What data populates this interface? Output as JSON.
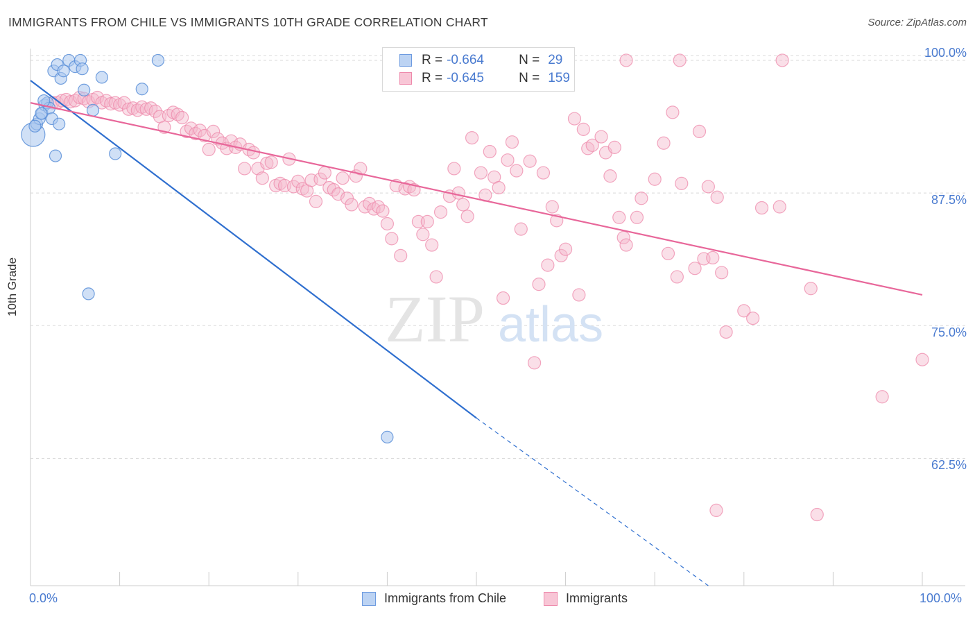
{
  "title": "IMMIGRANTS FROM CHILE VS IMMIGRANTS 10TH GRADE CORRELATION CHART",
  "source": "Source: ZipAtlas.com",
  "watermark": {
    "zip": "ZIP",
    "atlas": "atlas"
  },
  "colors": {
    "blue_fill": "#a9c6ee",
    "blue_stroke": "#5b8fd8",
    "blue_line": "#2f6fcf",
    "pink_fill": "#f5b8cc",
    "pink_stroke": "#ee89ab",
    "pink_line": "#e8679a",
    "tick_text": "#4a7bd0",
    "grid": "#d8d8d8"
  },
  "legend": {
    "rows": [
      {
        "r_label": "R =",
        "r_value": "-0.664",
        "n_label": "N =",
        "n_value": "29"
      },
      {
        "r_label": "R =",
        "r_value": "-0.645",
        "n_label": "N =",
        "n_value": "159"
      }
    ]
  },
  "bottom_legend": {
    "series1": "Immigrants from Chile",
    "series2": "Immigrants"
  },
  "chart_data": {
    "type": "scatter",
    "title": "IMMIGRANTS FROM CHILE VS IMMIGRANTS 10TH GRADE CORRELATION CHART",
    "xlabel": "",
    "ylabel": "10th Grade",
    "xlim": [
      0,
      100
    ],
    "ylim": [
      50.5,
      101.5
    ],
    "x_tick_labels": [
      "0.0%",
      "100.0%"
    ],
    "y_ticks": [
      62.5,
      75.0,
      87.5,
      100.0
    ],
    "y_tick_labels": [
      "62.5%",
      "75.0%",
      "87.5%",
      "100.0%"
    ],
    "grid": "horizontal dashed",
    "legend_position": "top-center",
    "series": [
      {
        "name": "Immigrants from Chile",
        "color": "#a9c6ee",
        "regression": {
          "x": [
            0,
            50
          ],
          "y": [
            98.1,
            66.3
          ],
          "dashed_to": [
            76,
            50.5
          ]
        },
        "points": [
          [
            0.3,
            93.0
          ],
          [
            0.7,
            94.0
          ],
          [
            1.0,
            94.5
          ],
          [
            1.3,
            95.0
          ],
          [
            1.6,
            95.8
          ],
          [
            1.9,
            96.0
          ],
          [
            2.1,
            95.5
          ],
          [
            2.4,
            94.5
          ],
          [
            2.6,
            99.0
          ],
          [
            2.8,
            91.0
          ],
          [
            3.0,
            99.6
          ],
          [
            3.2,
            94.0
          ],
          [
            3.4,
            98.3
          ],
          [
            3.7,
            99.0
          ],
          [
            4.3,
            100.0
          ],
          [
            5.0,
            99.4
          ],
          [
            5.6,
            100.0
          ],
          [
            5.8,
            99.2
          ],
          [
            6.0,
            97.2
          ],
          [
            6.5,
            78.0
          ],
          [
            7.0,
            95.3
          ],
          [
            8.0,
            98.4
          ],
          [
            9.5,
            91.2
          ],
          [
            12.5,
            97.3
          ],
          [
            14.3,
            100.0
          ],
          [
            0.5,
            93.8
          ],
          [
            1.5,
            96.2
          ],
          [
            40.0,
            64.5
          ],
          [
            1.2,
            95.0
          ]
        ]
      },
      {
        "name": "Immigrants",
        "color": "#f5b8cc",
        "regression": {
          "x": [
            0,
            100
          ],
          "y": [
            96.0,
            77.9
          ]
        },
        "points": [
          [
            2.5,
            96.0
          ],
          [
            3.0,
            96.0
          ],
          [
            3.5,
            96.2
          ],
          [
            4.0,
            96.3
          ],
          [
            4.5,
            96.1
          ],
          [
            5.0,
            96.2
          ],
          [
            5.5,
            96.5
          ],
          [
            6.0,
            96.4
          ],
          [
            6.5,
            96.1
          ],
          [
            7.0,
            96.3
          ],
          [
            7.5,
            96.5
          ],
          [
            8.0,
            96.0
          ],
          [
            8.5,
            96.2
          ],
          [
            9.0,
            95.9
          ],
          [
            9.5,
            96.0
          ],
          [
            10.0,
            95.8
          ],
          [
            10.5,
            96.0
          ],
          [
            11.0,
            95.4
          ],
          [
            11.5,
            95.5
          ],
          [
            12.0,
            95.3
          ],
          [
            12.5,
            95.6
          ],
          [
            13.0,
            95.4
          ],
          [
            13.5,
            95.5
          ],
          [
            14.0,
            95.2
          ],
          [
            14.5,
            94.7
          ],
          [
            15.0,
            93.7
          ],
          [
            15.5,
            94.8
          ],
          [
            16.0,
            95.1
          ],
          [
            16.5,
            94.9
          ],
          [
            17.0,
            94.6
          ],
          [
            17.5,
            93.3
          ],
          [
            18.0,
            93.6
          ],
          [
            18.5,
            93.1
          ],
          [
            19.0,
            93.4
          ],
          [
            19.5,
            92.9
          ],
          [
            20.0,
            91.6
          ],
          [
            20.5,
            93.3
          ],
          [
            21.0,
            92.6
          ],
          [
            21.5,
            92.2
          ],
          [
            22.0,
            91.7
          ],
          [
            22.5,
            92.4
          ],
          [
            23.0,
            91.8
          ],
          [
            23.5,
            92.1
          ],
          [
            24.0,
            89.8
          ],
          [
            24.5,
            91.6
          ],
          [
            25.0,
            91.3
          ],
          [
            25.5,
            89.8
          ],
          [
            26.0,
            88.9
          ],
          [
            26.5,
            90.3
          ],
          [
            27.0,
            90.4
          ],
          [
            27.5,
            88.2
          ],
          [
            28.0,
            88.4
          ],
          [
            28.5,
            88.2
          ],
          [
            29.0,
            90.7
          ],
          [
            29.5,
            88.1
          ],
          [
            30.0,
            88.6
          ],
          [
            30.5,
            87.9
          ],
          [
            31.0,
            87.7
          ],
          [
            31.5,
            88.7
          ],
          [
            32.0,
            86.7
          ],
          [
            32.5,
            88.8
          ],
          [
            33.0,
            89.4
          ],
          [
            33.5,
            88.0
          ],
          [
            34.0,
            87.8
          ],
          [
            34.5,
            87.4
          ],
          [
            35.0,
            88.9
          ],
          [
            35.5,
            87.0
          ],
          [
            36.0,
            86.4
          ],
          [
            36.5,
            89.1
          ],
          [
            37.0,
            89.8
          ],
          [
            37.5,
            86.2
          ],
          [
            38.0,
            86.5
          ],
          [
            38.5,
            86.0
          ],
          [
            39.0,
            86.2
          ],
          [
            39.5,
            85.8
          ],
          [
            40.0,
            84.6
          ],
          [
            40.5,
            83.2
          ],
          [
            41.0,
            88.2
          ],
          [
            41.5,
            81.6
          ],
          [
            42.0,
            87.9
          ],
          [
            42.5,
            88.1
          ],
          [
            43.0,
            87.8
          ],
          [
            43.5,
            84.8
          ],
          [
            44.0,
            83.6
          ],
          [
            44.5,
            84.8
          ],
          [
            45.0,
            82.6
          ],
          [
            45.5,
            79.6
          ],
          [
            46.0,
            85.7
          ],
          [
            47.0,
            87.2
          ],
          [
            47.5,
            89.8
          ],
          [
            48.0,
            87.5
          ],
          [
            48.5,
            86.4
          ],
          [
            49.0,
            85.3
          ],
          [
            49.5,
            92.7
          ],
          [
            50.5,
            89.4
          ],
          [
            51.0,
            87.3
          ],
          [
            51.5,
            91.4
          ],
          [
            52.0,
            89.0
          ],
          [
            52.5,
            88.0
          ],
          [
            53.0,
            77.6
          ],
          [
            53.5,
            90.6
          ],
          [
            54.0,
            92.3
          ],
          [
            54.5,
            89.6
          ],
          [
            55.0,
            84.1
          ],
          [
            56.0,
            90.5
          ],
          [
            56.5,
            71.5
          ],
          [
            57.0,
            78.9
          ],
          [
            57.5,
            89.4
          ],
          [
            58.0,
            80.7
          ],
          [
            58.5,
            86.2
          ],
          [
            59.0,
            84.9
          ],
          [
            59.5,
            81.6
          ],
          [
            60.0,
            82.2
          ],
          [
            61.0,
            94.5
          ],
          [
            61.5,
            77.9
          ],
          [
            62.0,
            93.5
          ],
          [
            62.5,
            91.7
          ],
          [
            63.0,
            92.0
          ],
          [
            64.0,
            92.8
          ],
          [
            64.5,
            91.3
          ],
          [
            65.0,
            89.1
          ],
          [
            65.5,
            91.8
          ],
          [
            66.0,
            85.2
          ],
          [
            66.5,
            83.3
          ],
          [
            66.8,
            82.6
          ],
          [
            68.0,
            85.2
          ],
          [
            68.5,
            87.0
          ],
          [
            70.0,
            88.8
          ],
          [
            71.0,
            92.2
          ],
          [
            71.5,
            81.8
          ],
          [
            72.0,
            95.1
          ],
          [
            72.5,
            79.6
          ],
          [
            73.0,
            88.4
          ],
          [
            74.5,
            80.4
          ],
          [
            75.0,
            93.3
          ],
          [
            75.5,
            81.3
          ],
          [
            76.0,
            88.1
          ],
          [
            76.5,
            81.4
          ],
          [
            77.0,
            87.1
          ],
          [
            77.5,
            80.0
          ],
          [
            78.0,
            74.4
          ],
          [
            80.0,
            76.4
          ],
          [
            81.0,
            75.7
          ],
          [
            82.0,
            86.1
          ],
          [
            84.0,
            86.2
          ],
          [
            87.5,
            78.5
          ],
          [
            95.5,
            68.3
          ],
          [
            100.0,
            71.8
          ],
          [
            66.8,
            100.0
          ],
          [
            72.8,
            100.0
          ],
          [
            84.3,
            100.0
          ],
          [
            76.9,
            57.6
          ],
          [
            88.2,
            57.2
          ]
        ]
      }
    ]
  }
}
